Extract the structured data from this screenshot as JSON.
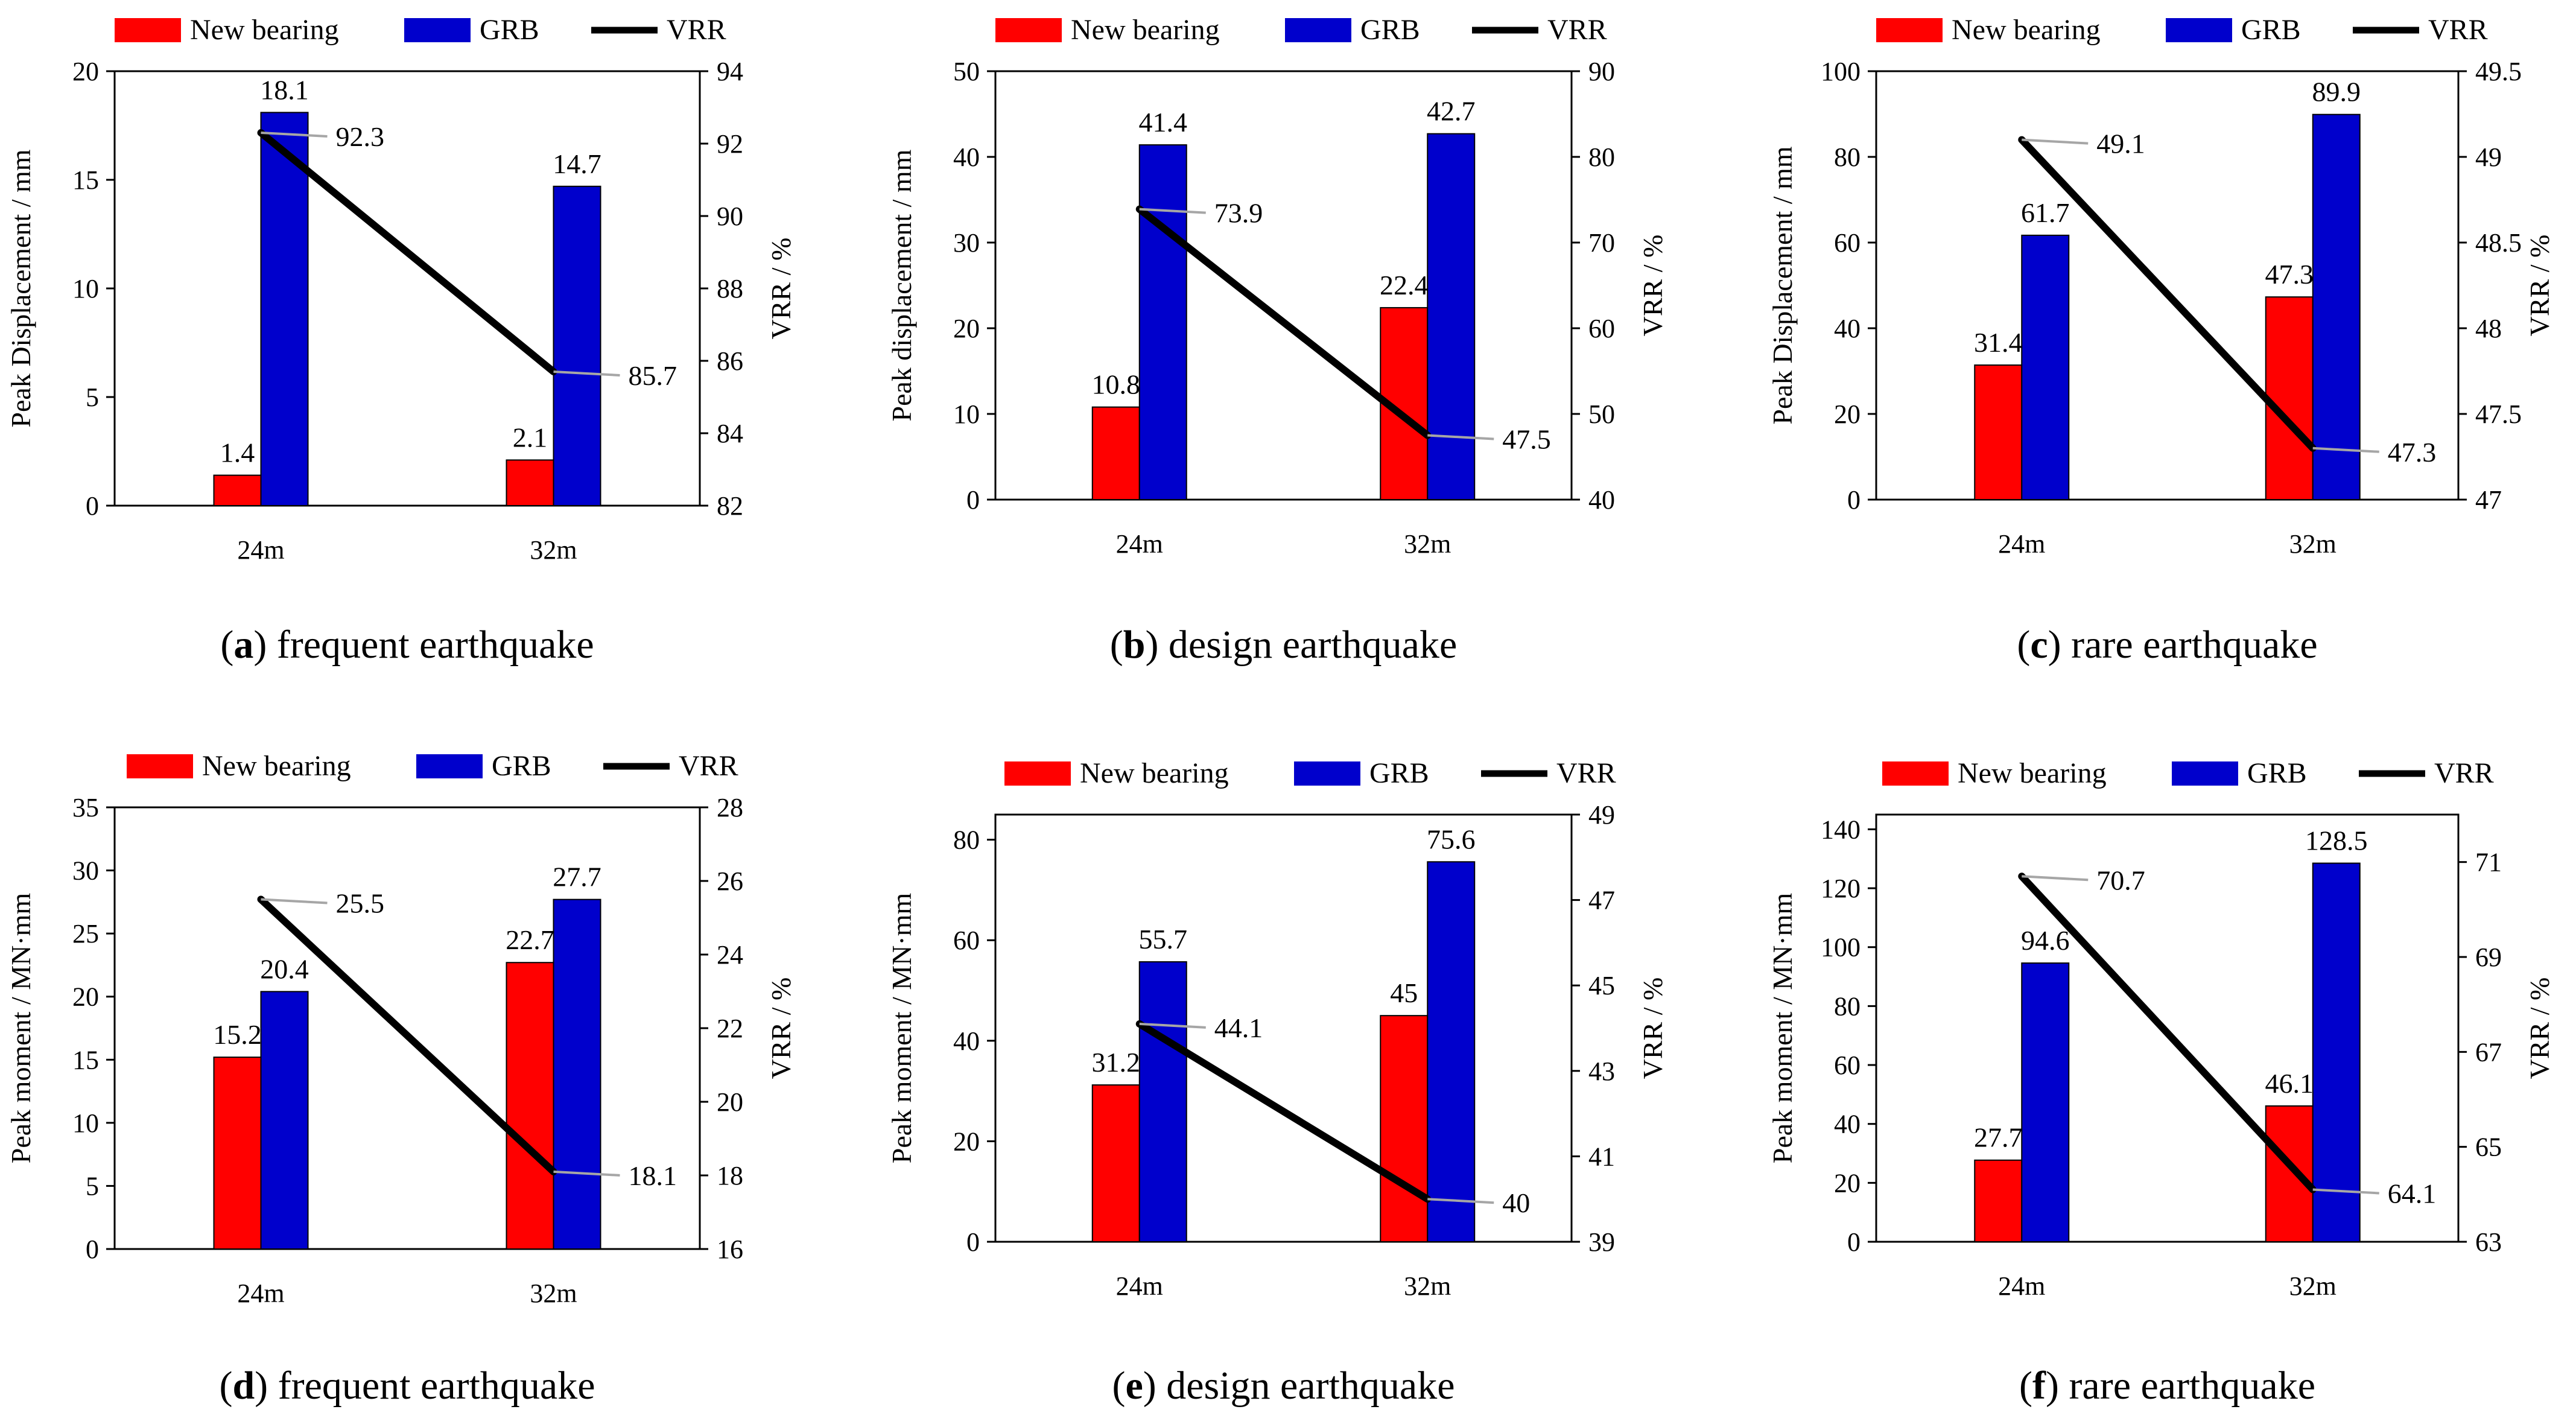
{
  "colors": {
    "new_bearing": "#ff0000",
    "grb": "#0000cc",
    "vrr": "#000000",
    "leader": "#a6a6a6"
  },
  "legend": {
    "new_bearing": "New bearing",
    "grb": "GRB",
    "vrr": "VRR"
  },
  "chart_data": [
    {
      "type": "bar",
      "caption_letter": "a",
      "caption_text": "frequent earthquake",
      "categories": [
        "24m",
        "32m"
      ],
      "series": [
        {
          "name": "New bearing",
          "values": [
            1.4,
            2.1
          ],
          "labels": [
            "1.4",
            "2.1"
          ]
        },
        {
          "name": "GRB",
          "values": [
            18.1,
            14.7
          ],
          "labels": [
            "18.1",
            "14.7"
          ]
        }
      ],
      "line": {
        "name": "VRR",
        "values": [
          92.3,
          85.7
        ],
        "labels": [
          "92.3",
          "85.7"
        ]
      },
      "ylabel": "Peak Displacement / mm",
      "y2label": "VRR / %",
      "ylim": [
        0,
        20
      ],
      "yticks": [
        "0",
        "5",
        "10",
        "15",
        "20"
      ],
      "y2lim": [
        82,
        94
      ],
      "y2ticks": [
        "82",
        "84",
        "86",
        "88",
        "90",
        "92",
        "94"
      ]
    },
    {
      "type": "bar",
      "caption_letter": "b",
      "caption_text": "design earthquake",
      "categories": [
        "24m",
        "32m"
      ],
      "series": [
        {
          "name": "New bearing",
          "values": [
            10.8,
            22.4
          ],
          "labels": [
            "10.8",
            "22.4"
          ]
        },
        {
          "name": "GRB",
          "values": [
            41.4,
            42.7
          ],
          "labels": [
            "41.4",
            "42.7"
          ]
        }
      ],
      "line": {
        "name": "VRR",
        "values": [
          73.9,
          47.5
        ],
        "labels": [
          "73.9",
          "47.5"
        ]
      },
      "ylabel": "Peak displacement / mm",
      "y2label": "VRR / %",
      "ylim": [
        0,
        50
      ],
      "yticks": [
        "0",
        "10",
        "20",
        "30",
        "40",
        "50"
      ],
      "y2lim": [
        40,
        90
      ],
      "y2ticks": [
        "40",
        "50",
        "60",
        "70",
        "80",
        "90"
      ]
    },
    {
      "type": "bar",
      "caption_letter": "c",
      "caption_text": "rare earthquake",
      "categories": [
        "24m",
        "32m"
      ],
      "series": [
        {
          "name": "New bearing",
          "values": [
            31.4,
            47.3
          ],
          "labels": [
            "31.4",
            "47.3"
          ]
        },
        {
          "name": "GRB",
          "values": [
            61.7,
            89.9
          ],
          "labels": [
            "61.7",
            "89.9"
          ]
        }
      ],
      "line": {
        "name": "VRR",
        "values": [
          49.1,
          47.3
        ],
        "labels": [
          "49.1",
          "47.3"
        ]
      },
      "ylabel": "Peak Displacement / mm",
      "y2label": "VRR / %",
      "ylim": [
        0,
        100
      ],
      "yticks": [
        "0",
        "20",
        "40",
        "60",
        "80",
        "100"
      ],
      "y2lim": [
        47,
        49.5
      ],
      "y2ticks": [
        "47",
        "47.5",
        "48",
        "48.5",
        "49",
        "49.5"
      ]
    },
    {
      "type": "bar",
      "caption_letter": "d",
      "caption_text": "frequent earthquake",
      "categories": [
        "24m",
        "32m"
      ],
      "series": [
        {
          "name": "New bearing",
          "values": [
            15.2,
            22.7
          ],
          "labels": [
            "15.2",
            "22.7"
          ]
        },
        {
          "name": "GRB",
          "values": [
            20.4,
            27.7
          ],
          "labels": [
            "20.4",
            "27.7"
          ]
        }
      ],
      "line": {
        "name": "VRR",
        "values": [
          25.5,
          18.1
        ],
        "labels": [
          "25.5",
          "18.1"
        ]
      },
      "ylabel": "Peak moment / MN·mm",
      "y2label": "VRR / %",
      "ylim": [
        0,
        35
      ],
      "yticks": [
        "0",
        "5",
        "10",
        "15",
        "20",
        "25",
        "30",
        "35"
      ],
      "y2lim": [
        16,
        28
      ],
      "y2ticks": [
        "16",
        "18",
        "20",
        "22",
        "24",
        "26",
        "28"
      ]
    },
    {
      "type": "bar",
      "caption_letter": "e",
      "caption_text": "design earthquake",
      "categories": [
        "24m",
        "32m"
      ],
      "series": [
        {
          "name": "New bearing",
          "values": [
            31.2,
            45
          ],
          "labels": [
            "31.2",
            "45"
          ]
        },
        {
          "name": "GRB",
          "values": [
            55.7,
            75.6
          ],
          "labels": [
            "55.7",
            "75.6"
          ]
        }
      ],
      "line": {
        "name": "VRR",
        "values": [
          44.1,
          40
        ],
        "labels": [
          "44.1",
          "40"
        ]
      },
      "ylabel": "Peak moment / MN·mm",
      "y2label": "VRR / %",
      "ylim": [
        0,
        85
      ],
      "yticks": [
        "0",
        "20",
        "40",
        "60",
        "80"
      ],
      "y2lim": [
        39,
        49
      ],
      "y2ticks": [
        "39",
        "41",
        "43",
        "45",
        "47",
        "49"
      ]
    },
    {
      "type": "bar",
      "caption_letter": "f",
      "caption_text": "rare earthquake",
      "categories": [
        "24m",
        "32m"
      ],
      "series": [
        {
          "name": "New bearing",
          "values": [
            27.7,
            46.1
          ],
          "labels": [
            "27.7",
            "46.1"
          ]
        },
        {
          "name": "GRB",
          "values": [
            94.6,
            128.5
          ],
          "labels": [
            "94.6",
            "128.5"
          ]
        }
      ],
      "line": {
        "name": "VRR",
        "values": [
          70.7,
          64.1
        ],
        "labels": [
          "70.7",
          "64.1"
        ]
      },
      "ylabel": "Peak moment / MN·mm",
      "y2label": "VRR / %",
      "ylim": [
        0,
        145
      ],
      "yticks": [
        "0",
        "20",
        "40",
        "60",
        "80",
        "100",
        "120",
        "140"
      ],
      "y2lim": [
        63,
        72
      ],
      "y2ticks": [
        "63",
        "65",
        "67",
        "69",
        "71"
      ]
    }
  ]
}
